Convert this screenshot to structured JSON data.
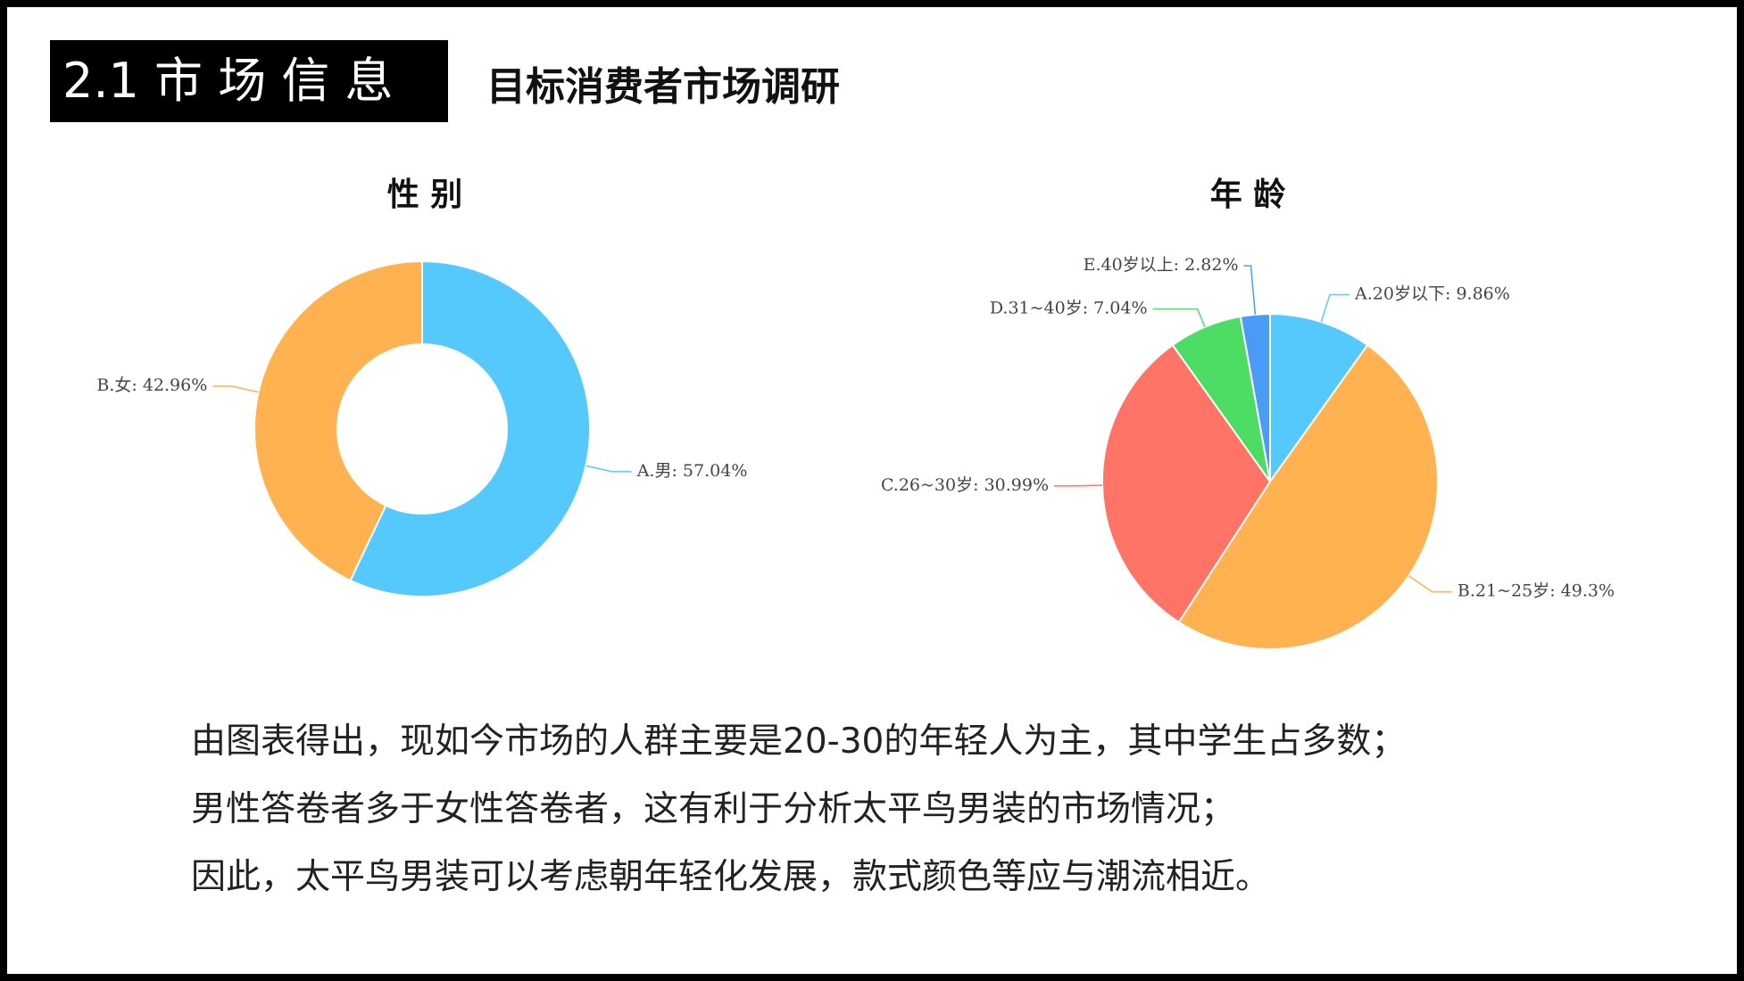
{
  "header": {
    "section_label": "2.1 市 场 信 息",
    "subtitle": "目标消费者市场调研"
  },
  "chart_data": [
    {
      "type": "pie",
      "variant": "donut",
      "title": "性 别",
      "categories": [
        "A.男",
        "B.女"
      ],
      "values": [
        57.04,
        42.96
      ],
      "value_suffix": "%",
      "colors": [
        "#56c9fc",
        "#ffb24f"
      ]
    },
    {
      "type": "pie",
      "title": "年 龄",
      "categories": [
        "A.20岁以下",
        "B.21~25岁",
        "C.26~30岁",
        "D.31~40岁",
        "E.40岁以上"
      ],
      "values": [
        9.86,
        49.3,
        30.99,
        7.04,
        2.82
      ],
      "value_suffix": "%",
      "colors": [
        "#56c9fc",
        "#ffb24f",
        "#ff7467",
        "#4ddc64",
        "#4a9bf6"
      ]
    }
  ],
  "body": {
    "lines": [
      "由图表得出，现如今市场的人群主要是20-30的年轻人为主，其中学生占多数；",
      "男性答卷者多于女性答卷者，这有利于分析太平鸟男装的市场情况；",
      "因此，太平鸟男装可以考虑朝年轻化发展，款式颜色等应与潮流相近。"
    ]
  }
}
